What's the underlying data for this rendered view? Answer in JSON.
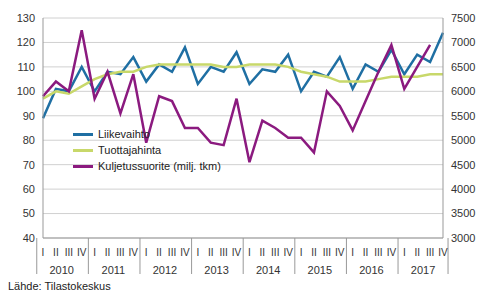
{
  "chart_data": {
    "type": "line",
    "categories": [
      "I",
      "II",
      "III",
      "IV",
      "I",
      "II",
      "III",
      "IV",
      "I",
      "II",
      "III",
      "IV",
      "I",
      "II",
      "III",
      "IV",
      "I",
      "II",
      "III",
      "IV",
      "I",
      "II",
      "III",
      "IV",
      "I",
      "II",
      "III",
      "IV",
      "I",
      "II",
      "III",
      "IV"
    ],
    "category_groups": [
      "2010",
      "2011",
      "2012",
      "2013",
      "2014",
      "2015",
      "2016",
      "2017"
    ],
    "series": [
      {
        "name": "Liikevaihto",
        "color": "#1f6fa3",
        "values": [
          89,
          101,
          100,
          110,
          100,
          108,
          107,
          114,
          104,
          111,
          108,
          118,
          103,
          110,
          108,
          116,
          103,
          109,
          108,
          115,
          100,
          108,
          106,
          114,
          101,
          111,
          108,
          117,
          107,
          115,
          112,
          124
        ]
      },
      {
        "name": "Tuottajahinta",
        "color": "#c8d86a",
        "values": [
          97,
          100,
          99,
          102,
          105,
          107,
          108,
          108,
          110,
          111,
          111,
          111,
          111,
          111,
          110,
          110,
          111,
          111,
          111,
          110,
          108,
          107,
          106,
          104,
          104,
          104,
          105,
          106,
          106,
          106,
          107,
          107
        ]
      },
      {
        "name": "Kuljetussuorite (milj. tkm)",
        "color": "#8b1a7f",
        "axis": "y2",
        "values": [
          5900,
          6200,
          6000,
          7250,
          5850,
          6400,
          5550,
          6350,
          4950,
          5900,
          5800,
          5250,
          5250,
          4950,
          4900,
          5850,
          4550,
          5400,
          5250,
          5050,
          5050,
          4750,
          6000,
          5700,
          5200,
          5800,
          6400,
          6950,
          6050,
          6500,
          6950,
          null
        ]
      }
    ],
    "ylim": [
      40,
      130
    ],
    "yticks": [
      40,
      50,
      60,
      70,
      80,
      90,
      100,
      110,
      120,
      130
    ],
    "y2lim": [
      3000,
      7500
    ],
    "y2ticks": [
      3000,
      3500,
      4000,
      4500,
      5000,
      5500,
      6000,
      6500,
      7000,
      7500
    ],
    "grid": true,
    "legend": "left",
    "source": "Lähde: Tilastokeskus"
  }
}
